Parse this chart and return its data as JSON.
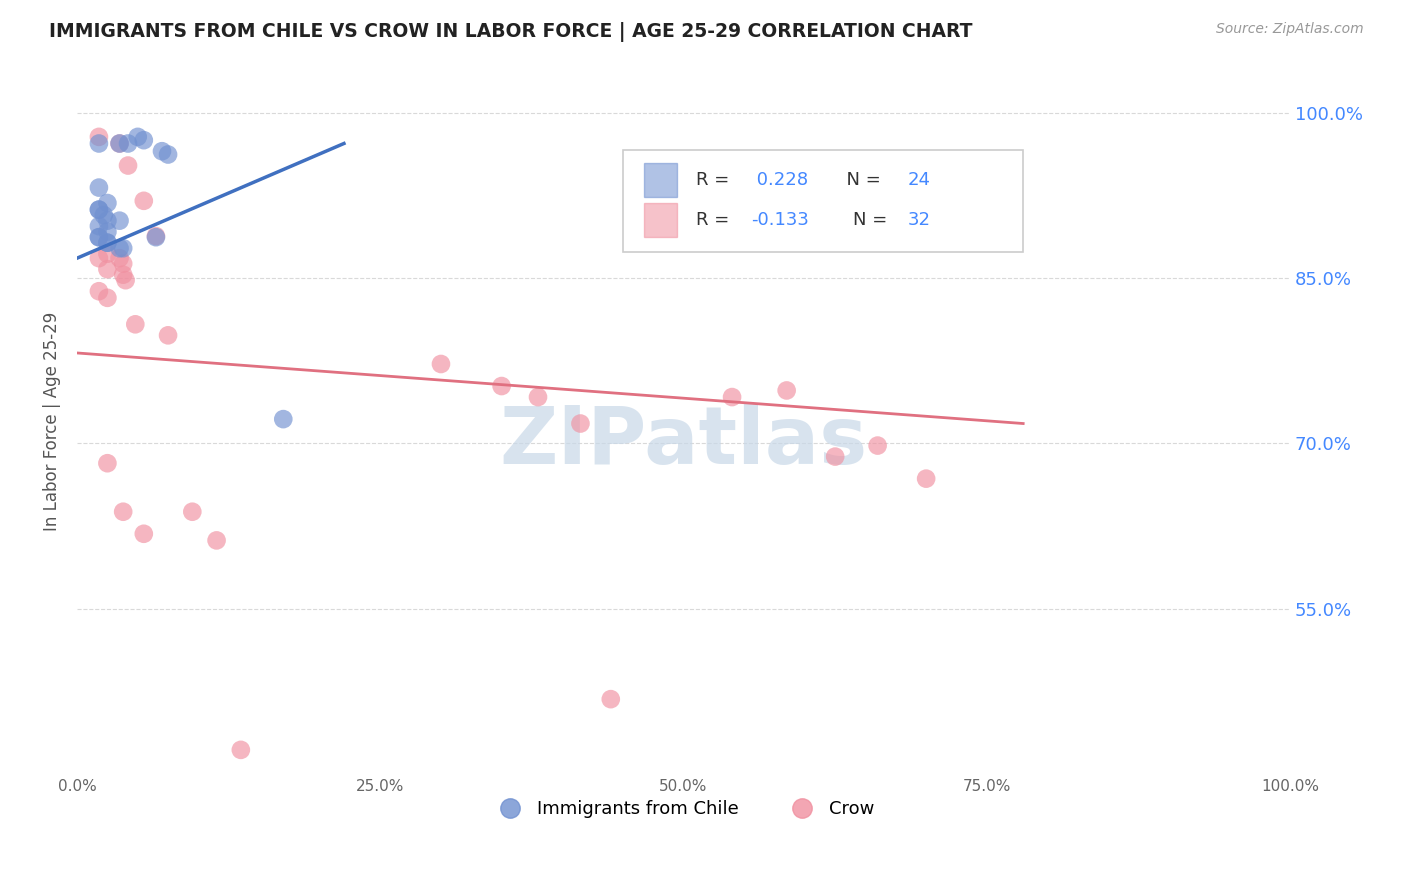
{
  "title": "IMMIGRANTS FROM CHILE VS CROW IN LABOR FORCE | AGE 25-29 CORRELATION CHART",
  "source": "Source: ZipAtlas.com",
  "ylabel": "In Labor Force | Age 25-29",
  "xlim": [
    0.0,
    1.0
  ],
  "ylim": [
    0.4,
    1.04
  ],
  "x_ticks": [
    0.0,
    0.25,
    0.5,
    0.75,
    1.0
  ],
  "x_tick_labels": [
    "0.0%",
    "25.0%",
    "50.0%",
    "75.0%",
    "100.0%"
  ],
  "y_ticks": [
    0.55,
    0.7,
    0.85,
    1.0
  ],
  "y_tick_labels": [
    "55.0%",
    "70.0%",
    "85.0%",
    "100.0%"
  ],
  "chile_color": "#7090d0",
  "crow_color": "#f090a0",
  "chile_scatter_x": [
    0.018,
    0.035,
    0.042,
    0.05,
    0.055,
    0.07,
    0.075,
    0.018,
    0.025,
    0.018,
    0.018,
    0.022,
    0.025,
    0.035,
    0.018,
    0.025,
    0.018,
    0.025,
    0.035,
    0.038,
    0.065,
    0.018,
    0.025,
    0.17
  ],
  "chile_scatter_y": [
    0.972,
    0.972,
    0.972,
    0.978,
    0.975,
    0.965,
    0.962,
    0.932,
    0.918,
    0.912,
    0.912,
    0.907,
    0.902,
    0.902,
    0.897,
    0.892,
    0.887,
    0.882,
    0.877,
    0.877,
    0.887,
    0.887,
    0.882,
    0.722
  ],
  "crow_scatter_x": [
    0.018,
    0.035,
    0.042,
    0.055,
    0.065,
    0.018,
    0.025,
    0.035,
    0.038,
    0.025,
    0.038,
    0.04,
    0.018,
    0.025,
    0.048,
    0.075,
    0.025,
    0.038,
    0.095,
    0.055,
    0.115,
    0.3,
    0.35,
    0.38,
    0.415,
    0.54,
    0.585,
    0.625,
    0.66,
    0.7,
    0.44,
    0.135
  ],
  "crow_scatter_y": [
    0.978,
    0.972,
    0.952,
    0.92,
    0.888,
    0.868,
    0.872,
    0.868,
    0.863,
    0.858,
    0.853,
    0.848,
    0.838,
    0.832,
    0.808,
    0.798,
    0.682,
    0.638,
    0.638,
    0.618,
    0.612,
    0.772,
    0.752,
    0.742,
    0.718,
    0.742,
    0.748,
    0.688,
    0.698,
    0.668,
    0.468,
    0.422
  ],
  "chile_line_x": [
    0.0,
    0.22
  ],
  "chile_line_y": [
    0.868,
    0.972
  ],
  "crow_line_x": [
    0.0,
    0.78
  ],
  "crow_line_y": [
    0.782,
    0.718
  ],
  "background_color": "#ffffff",
  "grid_color": "#d0d0d0",
  "watermark_text": "ZIPatlas",
  "watermark_color": "#c8d8e8",
  "legend_chile_r": "R =  0.228",
  "legend_chile_n": "N = 24",
  "legend_crow_r": "R = -0.133",
  "legend_crow_n": "N = 32",
  "bottom_legend_labels": [
    "Immigrants from Chile",
    "Crow"
  ]
}
